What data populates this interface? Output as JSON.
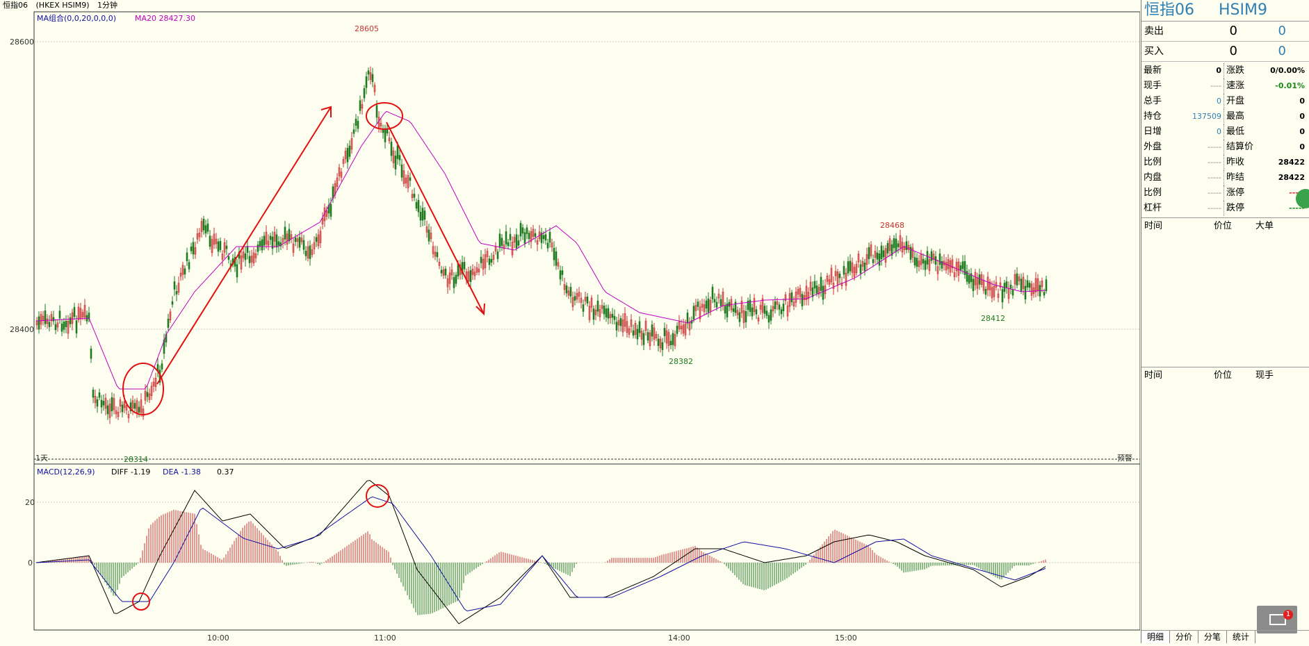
{
  "toolbar": {
    "symbol": "恒指06",
    "code": "(HKEX HSIM9)",
    "period": "1分钟"
  },
  "main_chart": {
    "ma_label": "MA组合(0,0,20,0,0,0)",
    "ma20_label": "MA20 28427.30",
    "price_ticks": [
      "28600",
      "28400"
    ],
    "high_label": "28605",
    "low_label": "28314",
    "mid_low_label": "28382",
    "mid_high_label": "28468",
    "late_low_label": "28412",
    "day_label": "1天",
    "alert_label": "预警"
  },
  "macd": {
    "title": "MACD(12,26,9)",
    "diff": "DIFF -1.19",
    "dea": "DEA -1.38",
    "macd_val": "0.37",
    "ticks": [
      "20",
      "0"
    ]
  },
  "time_axis": [
    "10:00",
    "11:00",
    "14:00",
    "15:00"
  ],
  "colors": {
    "up": "#c83232",
    "down": "#1f7a1f",
    "ma20": "#c000c0",
    "annotation": "#e01010",
    "diff": "#000000",
    "dea": "#1010a0"
  },
  "panel": {
    "title": "恒指06",
    "code": "HSIM9",
    "sell_label": "卖出",
    "sell_price": "0",
    "sell_qty": "0",
    "buy_label": "买入",
    "buy_price": "0",
    "buy_qty": "0",
    "quote": [
      {
        "k1": "最新",
        "v1": "0",
        "c1": "black",
        "k2": "涨跌",
        "v2": "0/0.00%",
        "c2": "black"
      },
      {
        "k1": "现手",
        "v1": "----",
        "c1": "gray",
        "k2": "速涨",
        "v2": "-0.01%",
        "c2": "green"
      },
      {
        "k1": "总手",
        "v1": "0",
        "c1": "blue",
        "k2": "开盘",
        "v2": "0",
        "c2": "black"
      },
      {
        "k1": "持仓",
        "v1": "137509",
        "c1": "blue",
        "k2": "最高",
        "v2": "0",
        "c2": "black"
      },
      {
        "k1": "日增",
        "v1": "0",
        "c1": "blue",
        "k2": "最低",
        "v2": "0",
        "c2": "black"
      },
      {
        "k1": "外盘",
        "v1": "-----",
        "c1": "gray",
        "k2": "结算价",
        "v2": "0",
        "c2": "black"
      },
      {
        "k1": "比例",
        "v1": "-----",
        "c1": "gray",
        "k2": "昨收",
        "v2": "28422",
        "c2": "black"
      },
      {
        "k1": "内盘",
        "v1": "-----",
        "c1": "gray",
        "k2": "昨结",
        "v2": "28422",
        "c2": "black"
      },
      {
        "k1": "比例",
        "v1": "-----",
        "c1": "gray",
        "k2": "涨停",
        "v2": "-----",
        "c2": "red"
      },
      {
        "k1": "杠杆",
        "v1": "-----",
        "c1": "gray",
        "k2": "跌停",
        "v2": "-----",
        "c2": "green"
      }
    ],
    "bigorder_headers": [
      "时间",
      "价位",
      "大单"
    ],
    "ticks_headers": [
      "时间",
      "价位",
      "现手"
    ],
    "tabs": [
      "明细",
      "分价",
      "分笔",
      "统计"
    ],
    "mail_badge": "1"
  }
}
